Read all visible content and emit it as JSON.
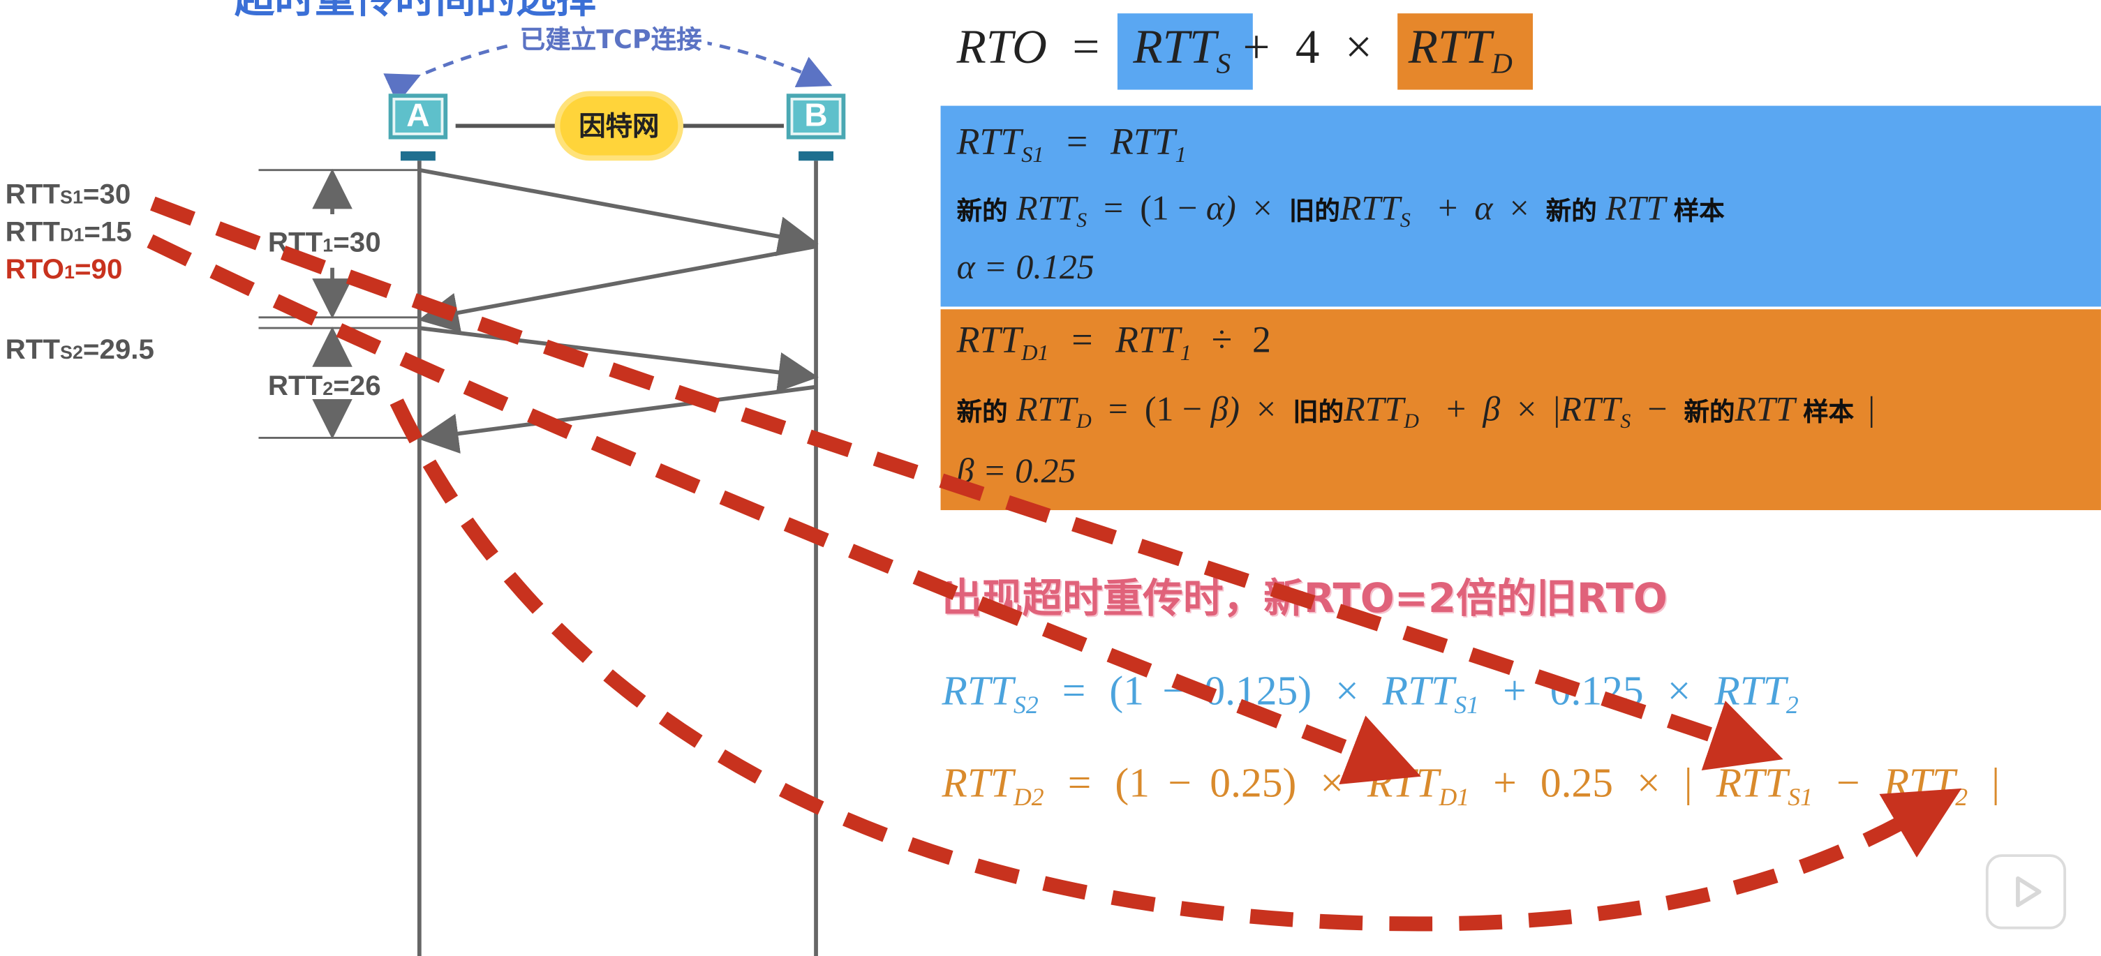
{
  "top_cut_title": "超时重传时间的选择",
  "connection_label": "已建立TCP连接",
  "host_a": "A",
  "host_b": "B",
  "internet_label": "因特网",
  "left_labels": {
    "rtts1": {
      "base": "RTT",
      "sub": "S1",
      "rest": "=30"
    },
    "rttd1": {
      "base": "RTT",
      "sub": "D1",
      "rest": "=15"
    },
    "rto1": {
      "base": "RTO",
      "sub": "1",
      "rest": "=90"
    },
    "rtts2": {
      "base": "RTT",
      "sub": "S2",
      "rest": "=29.5"
    }
  },
  "interval_labels": {
    "rtt1": {
      "base": "RTT",
      "sub": "1",
      "rest": "=30"
    },
    "rtt2": {
      "base": "RTT",
      "sub": "2",
      "rest": "=26"
    }
  },
  "formula_rto": {
    "lhs": "RTO",
    "eq": "=",
    "term1": "RTT",
    "term1_sub": "S",
    "plus": "+",
    "coef": "4",
    "times": "×",
    "term2": "RTT",
    "term2_sub": "D"
  },
  "blue_panel": {
    "line1": {
      "lhs": "RTT",
      "lhs_sub": "S1",
      "eq": "=",
      "rhs": "RTT",
      "rhs_sub": "1"
    },
    "line2": {
      "new_cn": "新的",
      "rtt": "RTT",
      "s": "S",
      "eq": "=",
      "open": "(1",
      "minus": "−",
      "alpha": "α)",
      "times": "×",
      "old_cn": "旧的",
      "rtt2": "RTT",
      "s2": "S",
      "plus": "+",
      "alpha2": "α",
      "times2": "×",
      "new_cn2": "新的",
      "rtt3": "RTT",
      "sample_cn": "样本"
    },
    "line3": "α = 0.125"
  },
  "orange_panel": {
    "line1": {
      "lhs": "RTT",
      "lhs_sub": "D1",
      "eq": "=",
      "rhs": "RTT",
      "rhs_sub": "1",
      "div": "÷",
      "two": "2"
    },
    "line2": {
      "new_cn": "新的",
      "rtt": "RTT",
      "d": "D",
      "eq": "=",
      "open": "(1",
      "minus": "−",
      "beta": "β)",
      "times": "×",
      "old_cn": "旧的",
      "rtt2": "RTT",
      "d2": "D",
      "plus": "+",
      "beta2": "β",
      "times2": "×",
      "bar": "|",
      "rtt3": "RTT",
      "s3": "S",
      "minus2": "−",
      "new_cn2": "新的",
      "rtt4": "RTT",
      "sample_cn": "样本",
      "bar2": "|"
    },
    "line3": "β = 0.25"
  },
  "retransmit_note": "出现超时重传时，新RTO=2倍的旧RTO",
  "formula_rtts2": {
    "lhs": "RTT",
    "lhs_sub": "S2",
    "eq": "=",
    "open": "(1",
    "minus": "−",
    "coef": "0.125)",
    "times": "×",
    "t1": "RTT",
    "t1_sub": "S1",
    "plus": "+",
    "coef2": "0.125",
    "times2": "×",
    "t2": "RTT",
    "t2_sub": "2"
  },
  "formula_rttd2": {
    "lhs": "RTT",
    "lhs_sub": "D2",
    "eq": "=",
    "open": "(1",
    "minus": "−",
    "coef": "0.25)",
    "times": "×",
    "t1": "RTT",
    "t1_sub": "D1",
    "plus": "+",
    "coef2": "0.25",
    "times2": "×",
    "bar": "|",
    "t2": "RTT",
    "t2_sub": "S1",
    "minus2": "−",
    "t3": "RTT",
    "t3_sub": "2",
    "bar2": "|"
  },
  "colors": {
    "blue_panel": "#5aa7f2",
    "orange_panel": "#e6872b",
    "arrow_red": "#c8321e",
    "note_pink": "#e0627a",
    "formula_blue": "#4ba3dd",
    "formula_orange": "#d98a2c"
  },
  "icons": [
    "computer-icon",
    "cloud-icon",
    "play-icon"
  ]
}
